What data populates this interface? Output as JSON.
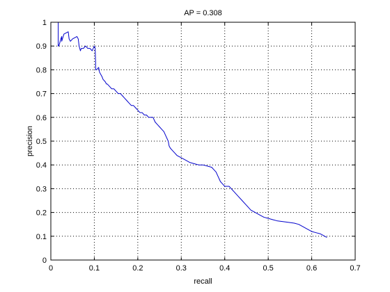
{
  "chart_data": {
    "type": "line",
    "title": "AP = 0.308",
    "xlabel": "recall",
    "ylabel": "precision",
    "xlim": [
      0,
      0.7
    ],
    "ylim": [
      0,
      1
    ],
    "xticks": [
      "0",
      "0.1",
      "0.2",
      "0.3",
      "0.4",
      "0.5",
      "0.6",
      "0.7"
    ],
    "yticks": [
      "0",
      "0.1",
      "0.2",
      "0.3",
      "0.4",
      "0.5",
      "0.6",
      "0.7",
      "0.8",
      "0.9",
      "1"
    ],
    "grid": true,
    "series": [
      {
        "color": "#0000cc",
        "x": [
          0.017,
          0.017,
          0.018,
          0.02,
          0.023,
          0.025,
          0.025,
          0.03,
          0.04,
          0.042,
          0.045,
          0.05,
          0.06,
          0.063,
          0.065,
          0.068,
          0.07,
          0.075,
          0.08,
          0.085,
          0.09,
          0.095,
          0.1,
          0.102,
          0.103,
          0.103,
          0.105,
          0.11,
          0.112,
          0.115,
          0.118,
          0.12,
          0.125,
          0.128,
          0.13,
          0.135,
          0.14,
          0.145,
          0.15,
          0.155,
          0.16,
          0.165,
          0.17,
          0.175,
          0.18,
          0.185,
          0.19,
          0.195,
          0.2,
          0.205,
          0.21,
          0.215,
          0.22,
          0.225,
          0.23,
          0.235,
          0.24,
          0.245,
          0.25,
          0.255,
          0.26,
          0.265,
          0.27,
          0.272,
          0.275,
          0.28,
          0.285,
          0.29,
          0.3,
          0.31,
          0.32,
          0.33,
          0.34,
          0.35,
          0.36,
          0.37,
          0.375,
          0.38,
          0.385,
          0.39,
          0.395,
          0.4,
          0.41,
          0.415,
          0.42,
          0.43,
          0.44,
          0.45,
          0.46,
          0.47,
          0.48,
          0.49,
          0.5,
          0.51,
          0.52,
          0.54,
          0.56,
          0.57,
          0.58,
          0.59,
          0.6,
          0.61,
          0.62,
          0.625,
          0.63,
          0.635
        ],
        "y": [
          1.0,
          0.9,
          0.9,
          0.91,
          0.93,
          0.94,
          0.92,
          0.95,
          0.96,
          0.93,
          0.92,
          0.93,
          0.94,
          0.93,
          0.9,
          0.88,
          0.89,
          0.89,
          0.9,
          0.89,
          0.89,
          0.88,
          0.9,
          0.89,
          0.83,
          0.8,
          0.8,
          0.81,
          0.79,
          0.78,
          0.77,
          0.76,
          0.75,
          0.74,
          0.74,
          0.73,
          0.72,
          0.72,
          0.71,
          0.7,
          0.7,
          0.69,
          0.68,
          0.67,
          0.66,
          0.65,
          0.65,
          0.64,
          0.63,
          0.62,
          0.62,
          0.61,
          0.61,
          0.6,
          0.6,
          0.6,
          0.58,
          0.57,
          0.56,
          0.55,
          0.54,
          0.52,
          0.5,
          0.48,
          0.47,
          0.46,
          0.45,
          0.44,
          0.43,
          0.42,
          0.41,
          0.405,
          0.4,
          0.4,
          0.395,
          0.39,
          0.38,
          0.37,
          0.35,
          0.33,
          0.32,
          0.31,
          0.31,
          0.3,
          0.29,
          0.27,
          0.25,
          0.23,
          0.21,
          0.2,
          0.19,
          0.18,
          0.175,
          0.17,
          0.165,
          0.16,
          0.155,
          0.15,
          0.14,
          0.13,
          0.12,
          0.115,
          0.11,
          0.105,
          0.1,
          0.095
        ]
      }
    ]
  }
}
